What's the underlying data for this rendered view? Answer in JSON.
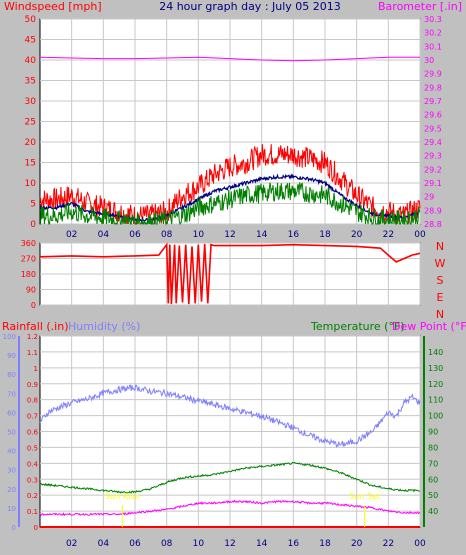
{
  "title": "24 hour graph day : July 05 2013",
  "colors": {
    "background": "#c0c0c0",
    "plot_bg": "#ffffff",
    "grid": "#c8c8c8",
    "wind_avg": "#008000",
    "wind_gust": "#ff0000",
    "wind_mean_line": "#000080",
    "barometer": "#ff00ff",
    "direction": "#ff0000",
    "humidity": "#8080ff",
    "temperature": "#008000",
    "dewpoint": "#ff00ff",
    "rain": "#ff0000",
    "sun_label": "#ffff00",
    "title": "#000080"
  },
  "chart_data": [
    {
      "id": "wind-baro",
      "type": "line",
      "title": "24 hour graph day : July 05 2013",
      "xlabel": "",
      "x_ticks": [
        "02",
        "04",
        "06",
        "08",
        "10",
        "12",
        "14",
        "16",
        "18",
        "20",
        "22",
        "00"
      ],
      "xlim": [
        0,
        24
      ],
      "left_axis": {
        "label": "Windspeed [mph]",
        "ylim": [
          0,
          50
        ],
        "ticks": [
          0,
          5,
          10,
          15,
          20,
          25,
          30,
          35,
          40,
          45,
          50
        ]
      },
      "right_axis": {
        "label": "Barometer [.in]",
        "ylim": [
          28.8,
          30.3
        ],
        "ticks": [
          28.8,
          28.9,
          29,
          29.1,
          29.2,
          29.3,
          29.4,
          29.5,
          29.6,
          29.7,
          29.8,
          29.9,
          30,
          30.1,
          30.2,
          30.3
        ]
      },
      "series": [
        {
          "key": "gust",
          "axis": "left",
          "x": [
            0,
            1,
            2,
            3,
            4,
            5,
            6,
            7,
            8,
            9,
            10,
            11,
            12,
            13,
            14,
            15,
            16,
            17,
            18,
            19,
            20,
            21,
            22,
            23,
            24
          ],
          "values": [
            6,
            6,
            7,
            5,
            4,
            3,
            2,
            2,
            3,
            7,
            9,
            12,
            14,
            15,
            17,
            17,
            17,
            16,
            15,
            11,
            7,
            4,
            3,
            2,
            4
          ]
        },
        {
          "key": "mean",
          "axis": "left",
          "x": [
            0,
            1,
            2,
            3,
            4,
            5,
            6,
            7,
            8,
            9,
            10,
            11,
            12,
            13,
            14,
            15,
            16,
            17,
            18,
            19,
            20,
            21,
            22,
            23,
            24
          ],
          "values": [
            4,
            4,
            5,
            3,
            2.5,
            2,
            1,
            1,
            2,
            4,
            6,
            8,
            9,
            10,
            11,
            11.5,
            11.5,
            11,
            10,
            7,
            4.5,
            2.5,
            2,
            1.5,
            3
          ]
        },
        {
          "key": "avg",
          "axis": "left",
          "x": [
            0,
            1,
            2,
            3,
            4,
            5,
            6,
            7,
            8,
            9,
            10,
            11,
            12,
            13,
            14,
            15,
            16,
            17,
            18,
            19,
            20,
            21,
            22,
            23,
            24
          ],
          "values": [
            2,
            2,
            3,
            2,
            1.5,
            1,
            0.5,
            0.5,
            1,
            2,
            4,
            5,
            6,
            7,
            7.5,
            8,
            8,
            7.5,
            7,
            5,
            3,
            1.5,
            1,
            1,
            2
          ]
        },
        {
          "key": "barometer",
          "axis": "right",
          "x": [
            0,
            2,
            4,
            6,
            8,
            10,
            12,
            14,
            16,
            18,
            20,
            22,
            24
          ],
          "values": [
            30.02,
            30.015,
            30.01,
            30.01,
            30.015,
            30.02,
            30.01,
            30.0,
            29.995,
            30.0,
            30.01,
            30.02,
            30.02
          ]
        }
      ]
    },
    {
      "id": "wind-direction",
      "type": "line",
      "xlim": [
        0,
        24
      ],
      "left_axis": {
        "ylim": [
          0,
          360
        ],
        "ticks": [
          0,
          90,
          180,
          270,
          360
        ]
      },
      "right_labels": [
        "N",
        "W",
        "S",
        "E",
        "N"
      ],
      "series": [
        {
          "key": "direction",
          "x": [
            0,
            2,
            4,
            6,
            7.5,
            8.0,
            8.1,
            8.2,
            8.3,
            8.5,
            8.6,
            8.8,
            9.0,
            9.2,
            9.4,
            9.6,
            9.8,
            10.0,
            10.2,
            10.4,
            10.6,
            10.8,
            11.0,
            11.5,
            12,
            14,
            16,
            18,
            20,
            21.5,
            22,
            22.5,
            23,
            23.5,
            24
          ],
          "values": [
            280,
            285,
            280,
            285,
            290,
            350,
            10,
            350,
            5,
            350,
            10,
            345,
            15,
            350,
            5,
            340,
            10,
            350,
            20,
            355,
            10,
            350,
            345,
            345,
            345,
            345,
            350,
            345,
            340,
            330,
            290,
            250,
            270,
            290,
            300
          ]
        }
      ]
    },
    {
      "id": "temp-hum-rain",
      "type": "line",
      "xlim": [
        0,
        24
      ],
      "rain_axis": {
        "label": "Rainfall (.in)",
        "ylim": [
          0,
          1.2
        ],
        "ticks": [
          0,
          0.1,
          0.2,
          0.3,
          0.4,
          0.5,
          0.6,
          0.7,
          0.8,
          0.9,
          1,
          1.1,
          1.2
        ]
      },
      "humidity_axis": {
        "label": "Humidity (%)",
        "ylim": [
          0,
          100
        ],
        "ticks": [
          0,
          10,
          20,
          30,
          40,
          50,
          60,
          70,
          80,
          90,
          100
        ]
      },
      "temp_axis": {
        "label": "Temperature (°F)",
        "ylim": [
          30,
          150
        ],
        "ticks": [
          40,
          50,
          60,
          70,
          80,
          90,
          100,
          110,
          120,
          130,
          140
        ]
      },
      "dewpoint_label": "Dew Point (°F)",
      "annotations": [
        {
          "text": "Sun Rise",
          "x": 5.2
        },
        {
          "text": "Sun Set",
          "x": 20.5
        }
      ],
      "series": [
        {
          "key": "humidity",
          "x": [
            0,
            0.5,
            1,
            2,
            3,
            4,
            5,
            6,
            7,
            8,
            9,
            10,
            11,
            12,
            13,
            14,
            15,
            16,
            17,
            18,
            19,
            20,
            21,
            22,
            22.5,
            23,
            23.5,
            24
          ],
          "values": [
            55,
            60,
            62,
            65,
            67,
            70,
            72,
            73,
            71,
            70,
            68,
            66,
            64,
            62,
            60,
            58,
            55,
            52,
            48,
            45,
            43,
            45,
            50,
            60,
            58,
            65,
            68,
            65
          ]
        },
        {
          "key": "temperature",
          "x": [
            0,
            1,
            2,
            3,
            4,
            5,
            6,
            7,
            8,
            9,
            10,
            11,
            12,
            13,
            14,
            15,
            16,
            17,
            18,
            19,
            20,
            21,
            22,
            23,
            24
          ],
          "values": [
            57,
            56,
            55,
            54,
            53,
            52,
            52,
            54,
            58,
            61,
            62,
            63,
            65,
            67,
            68,
            69,
            70,
            69,
            67,
            64,
            60,
            56,
            54,
            53,
            53
          ]
        },
        {
          "key": "dewpoint",
          "x": [
            0,
            2,
            4,
            5,
            6,
            7,
            8,
            9,
            10,
            11,
            12,
            13,
            14,
            15,
            16,
            17,
            18,
            19,
            20,
            21,
            22,
            23,
            24
          ],
          "values": [
            38,
            38,
            38,
            38,
            39,
            40,
            41,
            43,
            45,
            45,
            46,
            46,
            45,
            46,
            46,
            45,
            45,
            44,
            43,
            42,
            40,
            39,
            39
          ]
        },
        {
          "key": "rain",
          "x": [
            0,
            24
          ],
          "values": [
            0,
            0
          ]
        }
      ]
    }
  ]
}
